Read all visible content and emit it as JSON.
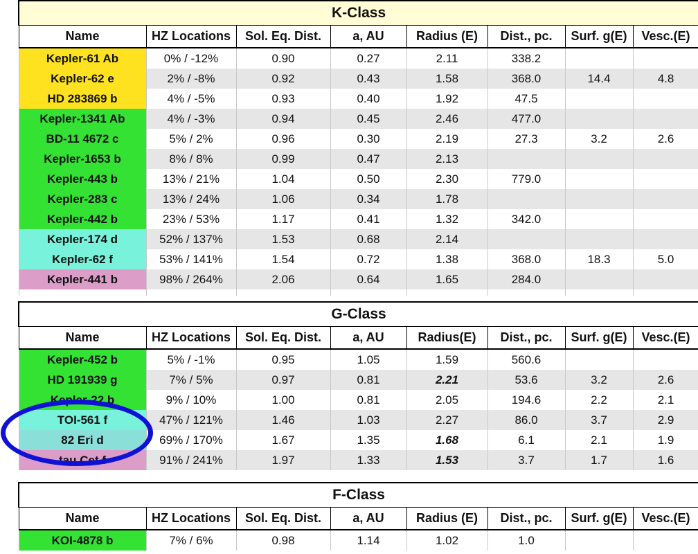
{
  "columns": [
    "Name",
    "HZ Locations",
    "Sol. Eq. Dist.",
    "a, AU",
    "Radius (E)",
    "Dist., pc.",
    "Surf. g(E)",
    "Vesc.(E)"
  ],
  "columns_g": [
    "Name",
    "HZ Locations",
    "Sol. Eq. Dist.",
    "a, AU",
    "Radius(E)",
    "Dist., pc.",
    "Surf. g(E)",
    "Vesc.(E)"
  ],
  "colors": {
    "yellow": "#ffe21f",
    "green": "#33e233",
    "cyan": "#78f2da",
    "teal": "#8adfd9",
    "pink": "#dc9ec9",
    "highlight_ellipse": "#0f12d6",
    "title_k_bg": "#fffcd6",
    "alt_row": "#e6e6e6"
  },
  "k_class": {
    "title": "K-Class",
    "rows": [
      [
        "Kepler-61 Ab",
        "0% / -12%",
        "0.90",
        "0.27",
        "2.11",
        "338.2",
        "",
        ""
      ],
      [
        "Kepler-62 e",
        "2% / -8%",
        "0.92",
        "0.43",
        "1.58",
        "368.0",
        "14.4",
        "4.8"
      ],
      [
        "HD 283869 b",
        "4% / -5%",
        "0.93",
        "0.40",
        "1.92",
        "47.5",
        "",
        ""
      ],
      [
        "Kepler-1341 Ab",
        "4% / -3%",
        "0.94",
        "0.45",
        "2.46",
        "477.0",
        "",
        ""
      ],
      [
        "BD-11 4672 c",
        "5% / 2%",
        "0.96",
        "0.30",
        "2.19",
        "27.3",
        "3.2",
        "2.6"
      ],
      [
        "Kepler-1653 b",
        "8% / 8%",
        "0.99",
        "0.47",
        "2.13",
        "",
        "",
        ""
      ],
      [
        "Kepler-443 b",
        "13% / 21%",
        "1.04",
        "0.50",
        "2.30",
        "779.0",
        "",
        ""
      ],
      [
        "Kepler-283 c",
        "13% / 24%",
        "1.06",
        "0.34",
        "1.78",
        "",
        "",
        ""
      ],
      [
        "Kepler-442 b",
        "23% / 53%",
        "1.17",
        "0.41",
        "1.32",
        "342.0",
        "",
        ""
      ],
      [
        "Kepler-174 d",
        "52% / 137%",
        "1.53",
        "0.68",
        "2.14",
        "",
        "",
        ""
      ],
      [
        "Kepler-62 f",
        "53% / 141%",
        "1.54",
        "0.72",
        "1.38",
        "368.0",
        "18.3",
        "5.0"
      ],
      [
        "Kepler-441 b",
        "98% / 264%",
        "2.06",
        "0.64",
        "1.65",
        "284.0",
        "",
        ""
      ]
    ]
  },
  "g_class": {
    "title": "G-Class",
    "rows": [
      [
        "Kepler-452 b",
        "5% / -1%",
        "0.95",
        "1.05",
        "1.59",
        "560.6",
        "",
        ""
      ],
      [
        "HD 191939 g",
        "7% / 5%",
        "0.97",
        "0.81",
        "2.21",
        "53.6",
        "3.2",
        "2.6"
      ],
      [
        "Kepler-22 b",
        "9% / 10%",
        "1.00",
        "0.81",
        "2.05",
        "194.6",
        "2.2",
        "2.1"
      ],
      [
        "TOI-561 f",
        "47% / 121%",
        "1.46",
        "1.03",
        "2.27",
        "86.0",
        "3.7",
        "2.9"
      ],
      [
        "82 Eri d",
        "69% / 170%",
        "1.67",
        "1.35",
        "1.68",
        "6.1",
        "2.1",
        "1.9"
      ],
      [
        "tau Cet f",
        "91% / 241%",
        "1.97",
        "1.33",
        "1.53",
        "3.7",
        "1.7",
        "1.6"
      ]
    ]
  },
  "f_class": {
    "title": "F-Class",
    "rows": [
      [
        "KOI-4878 b",
        "7% / 6%",
        "0.98",
        "1.14",
        "1.02",
        "1.0",
        "",
        ""
      ]
    ]
  }
}
